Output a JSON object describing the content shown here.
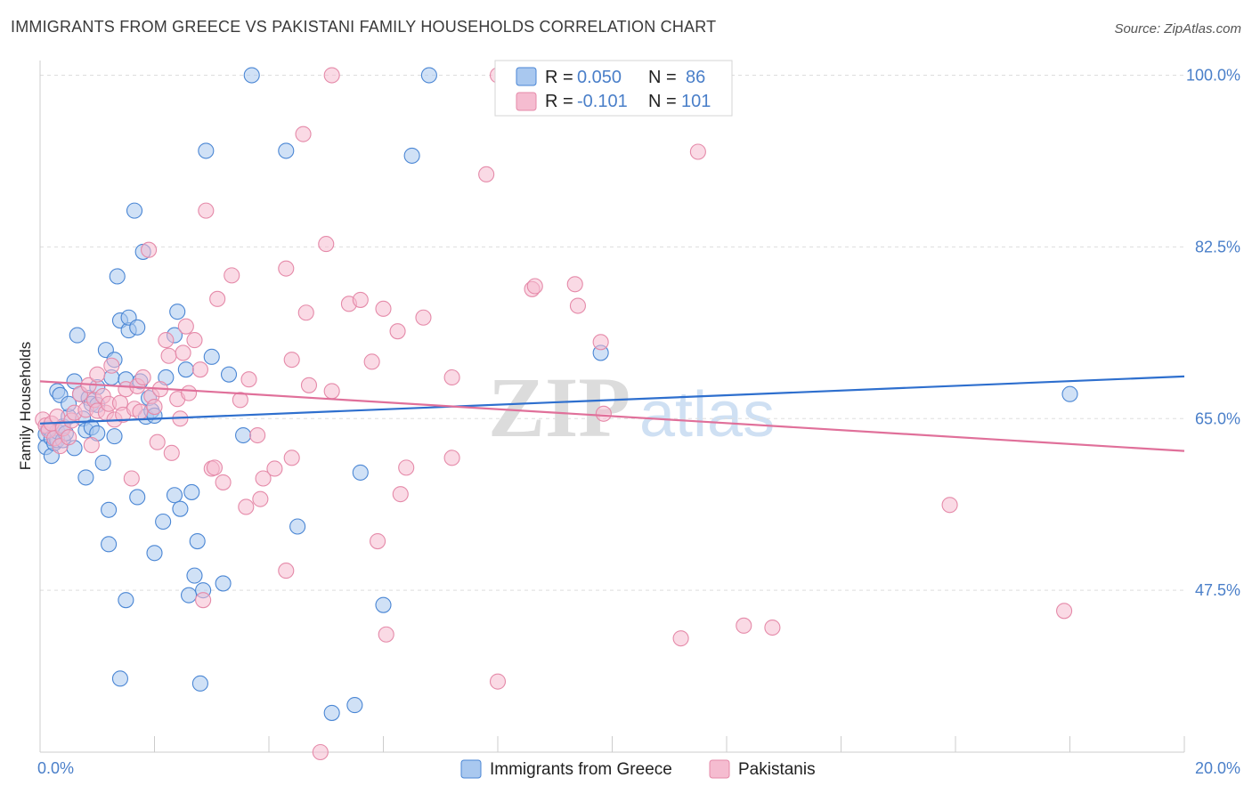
{
  "title": "IMMIGRANTS FROM GREECE VS PAKISTANI FAMILY HOUSEHOLDS CORRELATION CHART",
  "source": "Source: ZipAtlas.com",
  "watermark": {
    "zip": "ZIP",
    "atlas": "atlas"
  },
  "colors": {
    "blue_fill": "#a9c8ef",
    "blue_stroke": "#4a86d4",
    "blue_line": "#2e6fce",
    "pink_fill": "#f5bcd0",
    "pink_stroke": "#e58aa9",
    "pink_line": "#e0709a",
    "axis_text": "#4a7fc9",
    "grid": "#dddddd"
  },
  "legend": {
    "r_label": "R =",
    "n_label": "N =",
    "series": [
      {
        "r": "0.050",
        "n": "86"
      },
      {
        "r": "-0.101",
        "n": "101"
      }
    ]
  },
  "chart_data": {
    "type": "scatter",
    "title": "IMMIGRANTS FROM GREECE VS PAKISTANI FAMILY HOUSEHOLDS CORRELATION CHART",
    "xlabel": "",
    "ylabel": "Family Households",
    "xlim": [
      0,
      20
    ],
    "ylim": [
      31,
      101.5
    ],
    "x_tick_labels": [
      "0.0%",
      "20.0%"
    ],
    "y_ticks": [
      47.5,
      65.0,
      82.5,
      100.0
    ],
    "y_tick_labels": [
      "47.5%",
      "65.0%",
      "82.5%",
      "100.0%"
    ],
    "legend_position": "top-center",
    "series": [
      {
        "name": "Immigrants from Greece",
        "r": 0.05,
        "n": 86,
        "trend": [
          [
            0,
            64.5
          ],
          [
            20,
            69.3
          ]
        ],
        "points": [
          [
            0.1,
            63.4
          ],
          [
            0.1,
            62.1
          ],
          [
            0.15,
            64.0
          ],
          [
            0.2,
            61.2
          ],
          [
            0.2,
            63.0
          ],
          [
            0.25,
            62.5
          ],
          [
            0.3,
            62.8
          ],
          [
            0.3,
            63.7
          ],
          [
            0.3,
            67.8
          ],
          [
            0.35,
            67.4
          ],
          [
            0.4,
            64.2
          ],
          [
            0.4,
            62.8
          ],
          [
            0.45,
            63.5
          ],
          [
            0.5,
            65.2
          ],
          [
            0.5,
            66.5
          ],
          [
            0.6,
            68.8
          ],
          [
            0.6,
            62.0
          ],
          [
            0.65,
            73.5
          ],
          [
            0.7,
            67.5
          ],
          [
            0.75,
            65.0
          ],
          [
            0.8,
            59.0
          ],
          [
            0.8,
            63.8
          ],
          [
            0.85,
            67.1
          ],
          [
            0.9,
            66.5
          ],
          [
            0.9,
            64.1
          ],
          [
            1.0,
            66.4
          ],
          [
            1.0,
            63.5
          ],
          [
            1.0,
            68.2
          ],
          [
            1.1,
            60.5
          ],
          [
            1.15,
            72.0
          ],
          [
            1.2,
            55.7
          ],
          [
            1.2,
            52.2
          ],
          [
            1.25,
            69.2
          ],
          [
            1.3,
            71.0
          ],
          [
            1.3,
            63.2
          ],
          [
            1.35,
            79.5
          ],
          [
            1.4,
            75.0
          ],
          [
            1.5,
            69.0
          ],
          [
            1.55,
            74.0
          ],
          [
            1.55,
            75.3
          ],
          [
            1.5,
            46.5
          ],
          [
            1.4,
            38.5
          ],
          [
            1.65,
            86.2
          ],
          [
            1.7,
            74.3
          ],
          [
            1.7,
            57.0
          ],
          [
            1.75,
            68.8
          ],
          [
            1.8,
            82.0
          ],
          [
            1.85,
            65.2
          ],
          [
            1.9,
            67.1
          ],
          [
            1.95,
            65.8
          ],
          [
            2.0,
            65.3
          ],
          [
            2.0,
            51.3
          ],
          [
            2.15,
            54.5
          ],
          [
            2.2,
            69.2
          ],
          [
            2.35,
            57.2
          ],
          [
            2.35,
            73.5
          ],
          [
            2.4,
            75.9
          ],
          [
            2.45,
            55.8
          ],
          [
            2.55,
            70.0
          ],
          [
            2.6,
            47.0
          ],
          [
            2.65,
            57.5
          ],
          [
            2.7,
            49.0
          ],
          [
            2.75,
            52.5
          ],
          [
            2.8,
            38.0
          ],
          [
            2.85,
            47.5
          ],
          [
            2.9,
            92.3
          ],
          [
            3.0,
            71.3
          ],
          [
            3.2,
            48.2
          ],
          [
            3.3,
            69.5
          ],
          [
            3.55,
            63.3
          ],
          [
            3.7,
            100.0
          ],
          [
            4.3,
            92.3
          ],
          [
            4.5,
            54.0
          ],
          [
            5.1,
            35.0
          ],
          [
            5.5,
            35.8
          ],
          [
            5.6,
            59.5
          ],
          [
            6.0,
            46.0
          ],
          [
            6.5,
            91.8
          ],
          [
            6.8,
            100.0
          ],
          [
            9.8,
            71.7
          ],
          [
            18.0,
            67.5
          ]
        ]
      },
      {
        "name": "Pakistanis",
        "r": -0.101,
        "n": 101,
        "trend": [
          [
            0,
            68.8
          ],
          [
            20,
            61.7
          ]
        ],
        "points": [
          [
            0.05,
            64.9
          ],
          [
            0.1,
            64.3
          ],
          [
            0.15,
            63.8
          ],
          [
            0.2,
            64.5
          ],
          [
            0.25,
            63.0
          ],
          [
            0.3,
            65.2
          ],
          [
            0.35,
            62.2
          ],
          [
            0.4,
            64.0
          ],
          [
            0.5,
            63.1
          ],
          [
            0.55,
            64.8
          ],
          [
            0.6,
            65.6
          ],
          [
            0.7,
            67.5
          ],
          [
            0.8,
            65.9
          ],
          [
            0.85,
            68.4
          ],
          [
            0.9,
            62.3
          ],
          [
            0.95,
            66.9
          ],
          [
            1.0,
            65.8
          ],
          [
            1.0,
            69.5
          ],
          [
            1.1,
            67.3
          ],
          [
            1.15,
            65.6
          ],
          [
            1.2,
            66.5
          ],
          [
            1.25,
            70.4
          ],
          [
            1.3,
            64.9
          ],
          [
            1.4,
            66.6
          ],
          [
            1.45,
            65.4
          ],
          [
            1.5,
            68.0
          ],
          [
            1.6,
            58.9
          ],
          [
            1.65,
            66.0
          ],
          [
            1.7,
            68.3
          ],
          [
            1.75,
            65.7
          ],
          [
            1.8,
            69.2
          ],
          [
            1.9,
            82.2
          ],
          [
            1.95,
            67.3
          ],
          [
            2.0,
            66.2
          ],
          [
            2.05,
            62.6
          ],
          [
            2.1,
            68.0
          ],
          [
            2.2,
            73.0
          ],
          [
            2.25,
            71.4
          ],
          [
            2.3,
            61.5
          ],
          [
            2.4,
            67.0
          ],
          [
            2.45,
            65.0
          ],
          [
            2.5,
            71.7
          ],
          [
            2.55,
            74.4
          ],
          [
            2.6,
            67.6
          ],
          [
            2.7,
            73.0
          ],
          [
            2.8,
            70.0
          ],
          [
            2.85,
            46.5
          ],
          [
            2.9,
            86.2
          ],
          [
            3.0,
            59.9
          ],
          [
            3.05,
            60.0
          ],
          [
            3.1,
            77.2
          ],
          [
            3.2,
            58.5
          ],
          [
            3.35,
            79.6
          ],
          [
            3.5,
            66.9
          ],
          [
            3.6,
            56.0
          ],
          [
            3.65,
            69.0
          ],
          [
            3.8,
            63.3
          ],
          [
            3.85,
            56.8
          ],
          [
            3.9,
            58.9
          ],
          [
            4.1,
            59.9
          ],
          [
            4.3,
            80.3
          ],
          [
            4.3,
            49.5
          ],
          [
            4.4,
            71.0
          ],
          [
            4.4,
            61.0
          ],
          [
            4.6,
            94.0
          ],
          [
            4.65,
            75.8
          ],
          [
            4.7,
            68.4
          ],
          [
            4.9,
            31.0
          ],
          [
            5.0,
            82.8
          ],
          [
            5.1,
            100.0
          ],
          [
            5.1,
            67.8
          ],
          [
            5.4,
            76.7
          ],
          [
            5.6,
            77.1
          ],
          [
            5.8,
            70.8
          ],
          [
            5.9,
            52.5
          ],
          [
            6.0,
            76.2
          ],
          [
            6.05,
            43.0
          ],
          [
            6.25,
            73.9
          ],
          [
            6.3,
            57.3
          ],
          [
            6.4,
            60.0
          ],
          [
            6.7,
            75.3
          ],
          [
            7.2,
            69.2
          ],
          [
            7.2,
            61.0
          ],
          [
            7.8,
            89.9
          ],
          [
            8.0,
            38.2
          ],
          [
            8.0,
            100.0
          ],
          [
            8.6,
            78.2
          ],
          [
            8.65,
            78.5
          ],
          [
            9.35,
            78.7
          ],
          [
            9.4,
            76.5
          ],
          [
            9.8,
            72.8
          ],
          [
            9.85,
            65.5
          ],
          [
            11.2,
            42.6
          ],
          [
            11.5,
            92.2
          ],
          [
            12.3,
            43.9
          ],
          [
            12.8,
            43.7
          ],
          [
            15.9,
            56.2
          ],
          [
            17.9,
            45.4
          ]
        ]
      }
    ]
  }
}
